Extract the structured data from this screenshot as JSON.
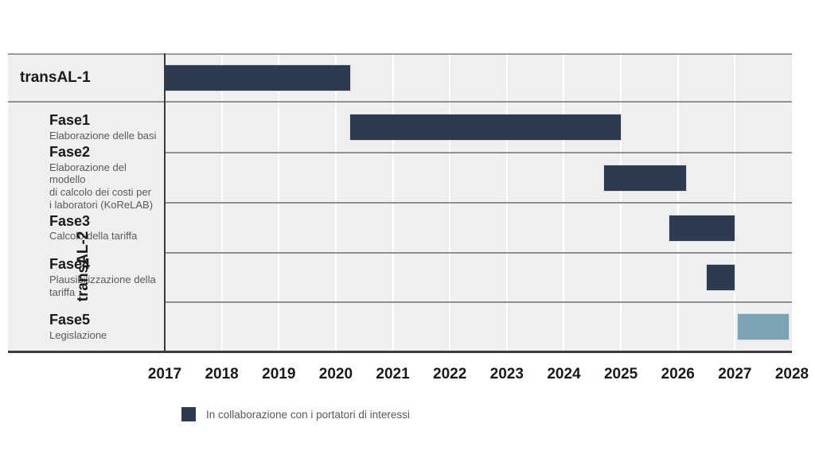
{
  "chart_data": {
    "type": "gantt",
    "title": "",
    "x_axis": {
      "min": 2017,
      "max": 2028,
      "tick_labels": [
        "2017",
        "2018",
        "2019",
        "2020",
        "2021",
        "2022",
        "2023",
        "2024",
        "2025",
        "2026",
        "2027",
        "2028"
      ]
    },
    "group_label": "transAL-2",
    "rows": [
      {
        "id": "transal-1",
        "label": "transAL-1",
        "sublines": [],
        "start": 2017.0,
        "end": 2020.25,
        "color_key": "collaboration",
        "in_group": false
      },
      {
        "id": "fase1",
        "label": "Fase1",
        "sublines": [
          "Elaborazione delle basi"
        ],
        "start": 2020.25,
        "end": 2025.0,
        "color_key": "collaboration",
        "in_group": true
      },
      {
        "id": "fase2",
        "label": "Fase2",
        "sublines": [
          "Elaborazione del modello",
          "di calcolo dei costi per",
          "i laboratori (KoReLAB)"
        ],
        "start": 2024.7,
        "end": 2026.15,
        "color_key": "collaboration",
        "in_group": true
      },
      {
        "id": "fase3",
        "label": "Fase3",
        "sublines": [
          "Calcolo della tariffa"
        ],
        "start": 2025.85,
        "end": 2027.0,
        "color_key": "collaboration",
        "in_group": true
      },
      {
        "id": "fase4",
        "label": "Fase4",
        "sublines": [
          "Plausibilizzazione della",
          "tariffa"
        ],
        "start": 2026.5,
        "end": 2027.0,
        "color_key": "collaboration",
        "in_group": true
      },
      {
        "id": "fase5",
        "label": "Fase5",
        "sublines": [
          "Legislazione"
        ],
        "start": 2027.05,
        "end": 2027.95,
        "color_key": "other",
        "in_group": true
      }
    ],
    "colors": {
      "collaboration": "#2d3a50",
      "other": "#7ba5b4"
    },
    "legend": [
      {
        "label": "In collaborazione con i portatori di interessi",
        "color_key": "collaboration"
      }
    ]
  }
}
